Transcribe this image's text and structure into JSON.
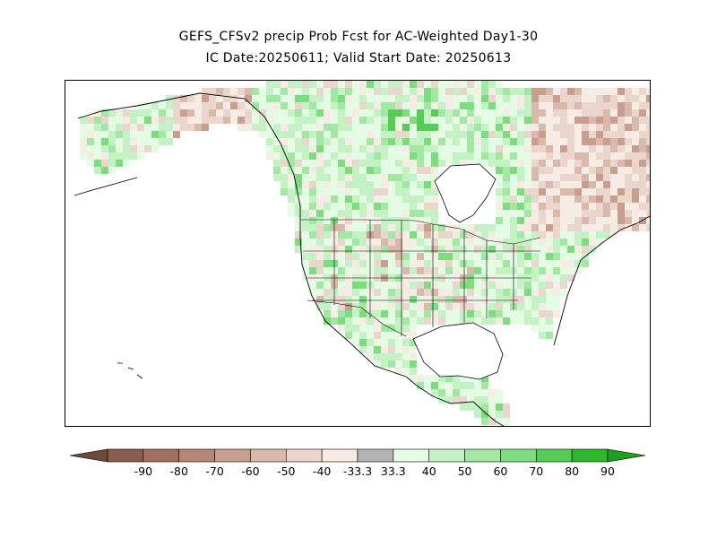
{
  "title": {
    "line1": "GEFS_CFSv2 precip Prob Fcst for AC-Weighted Day1-30",
    "line2": "IC Date:20250611; Valid Start Date: 20250613"
  },
  "map": {
    "region": "North America",
    "ocean_color": "#ffffff",
    "boundary_color": "#000000"
  },
  "colorbar": {
    "left_arrow_color": "#6f4a3c",
    "right_arrow_color": "#1ea01e",
    "bins": [
      {
        "color": "#8a5d4e",
        "label": "-90"
      },
      {
        "color": "#a26f60",
        "label": "-80"
      },
      {
        "color": "#b88676",
        "label": "-70"
      },
      {
        "color": "#c99e8f",
        "label": "-60"
      },
      {
        "color": "#d9b9ab",
        "label": "-50"
      },
      {
        "color": "#ead6cd",
        "label": "-40"
      },
      {
        "color": "#f7ebe5",
        "label": "-33.3"
      },
      {
        "color": "#b4b4b4",
        "label": "33.3"
      },
      {
        "color": "#e4fbe4",
        "label": "40"
      },
      {
        "color": "#c4f2c4",
        "label": "50"
      },
      {
        "color": "#a2e8a2",
        "label": "60"
      },
      {
        "color": "#7ddc7d",
        "label": "70"
      },
      {
        "color": "#55cc55",
        "label": "80"
      },
      {
        "color": "#2db82d",
        "label": "90"
      }
    ]
  }
}
